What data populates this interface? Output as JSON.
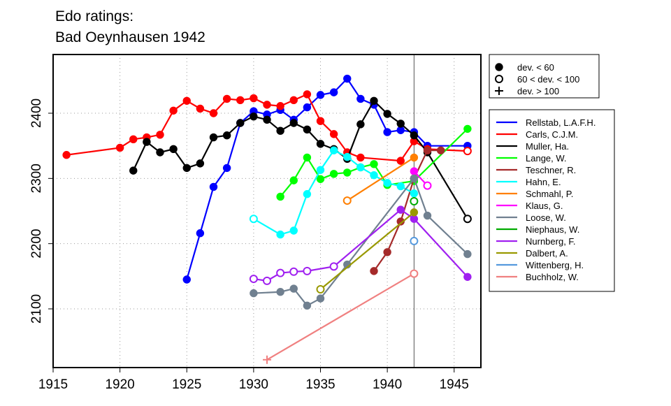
{
  "chart_data": {
    "type": "line",
    "title_line1": "Edo ratings:",
    "title_line2": "Bad Oeynhausen 1942",
    "xlabel": "",
    "ylabel": "",
    "xlim": [
      1915,
      1947
    ],
    "ylim": [
      2010,
      2490
    ],
    "xticks": [
      "1915",
      "1920",
      "1925",
      "1930",
      "1935",
      "1940",
      "1945"
    ],
    "yticks": [
      "2100",
      "2200",
      "2300",
      "2400"
    ],
    "grid": true,
    "event_year": 1942,
    "legend_markers": [
      "dev. < 60",
      "60 < dev. < 100",
      "dev. > 100"
    ],
    "series": [
      {
        "name": "Rellstab, L.A.F.H.",
        "color": "#0000ff",
        "points": [
          [
            1925,
            2145,
            "f"
          ],
          [
            1926,
            2216,
            "f"
          ],
          [
            1927,
            2287,
            "f"
          ],
          [
            1928,
            2316,
            "f"
          ],
          [
            1929,
            2385,
            "f"
          ],
          [
            1930,
            2403,
            "f"
          ],
          [
            1931,
            2398,
            "f"
          ],
          [
            1932,
            2405,
            "f"
          ],
          [
            1933,
            2390,
            "f"
          ],
          [
            1934,
            2409,
            "f"
          ],
          [
            1935,
            2428,
            "f"
          ],
          [
            1936,
            2432,
            "f"
          ],
          [
            1937,
            2453,
            "f"
          ],
          [
            1938,
            2422,
            "f"
          ],
          [
            1939,
            2413,
            "f"
          ],
          [
            1940,
            2371,
            "f"
          ],
          [
            1941,
            2374,
            "f"
          ],
          [
            1942,
            2371,
            "f"
          ],
          [
            1943,
            2350,
            "f"
          ],
          [
            1946,
            2350,
            "f"
          ]
        ]
      },
      {
        "name": "Carls, C.J.M.",
        "color": "#ff0000",
        "points": [
          [
            1916,
            2336,
            "f"
          ],
          [
            1920,
            2347,
            "f"
          ],
          [
            1921,
            2360,
            "f"
          ],
          [
            1922,
            2363,
            "f"
          ],
          [
            1923,
            2367,
            "f"
          ],
          [
            1924,
            2404,
            "f"
          ],
          [
            1925,
            2419,
            "f"
          ],
          [
            1926,
            2407,
            "f"
          ],
          [
            1927,
            2400,
            "f"
          ],
          [
            1928,
            2422,
            "f"
          ],
          [
            1929,
            2420,
            "f"
          ],
          [
            1930,
            2423,
            "f"
          ],
          [
            1931,
            2413,
            "f"
          ],
          [
            1932,
            2411,
            "f"
          ],
          [
            1933,
            2420,
            "f"
          ],
          [
            1934,
            2429,
            "f"
          ],
          [
            1935,
            2388,
            "f"
          ],
          [
            1936,
            2368,
            "f"
          ],
          [
            1937,
            2340,
            "f"
          ],
          [
            1938,
            2332,
            "f"
          ],
          [
            1941,
            2327,
            "f"
          ],
          [
            1942,
            2357,
            "f"
          ],
          [
            1943,
            2345,
            "f"
          ],
          [
            1946,
            2342,
            "o"
          ]
        ]
      },
      {
        "name": "Muller, Ha.",
        "color": "#000000",
        "points": [
          [
            1921,
            2312,
            "f"
          ],
          [
            1922,
            2356,
            "f"
          ],
          [
            1923,
            2340,
            "f"
          ],
          [
            1924,
            2345,
            "f"
          ],
          [
            1925,
            2316,
            "f"
          ],
          [
            1926,
            2323,
            "f"
          ],
          [
            1927,
            2363,
            "f"
          ],
          [
            1928,
            2366,
            "f"
          ],
          [
            1929,
            2385,
            "f"
          ],
          [
            1930,
            2395,
            "f"
          ],
          [
            1931,
            2390,
            "f"
          ],
          [
            1932,
            2373,
            "f"
          ],
          [
            1933,
            2385,
            "f"
          ],
          [
            1934,
            2375,
            "f"
          ],
          [
            1935,
            2353,
            "f"
          ],
          [
            1936,
            2345,
            "f"
          ],
          [
            1937,
            2330,
            "f"
          ],
          [
            1938,
            2383,
            "f"
          ],
          [
            1939,
            2419,
            "f"
          ],
          [
            1940,
            2399,
            "f"
          ],
          [
            1941,
            2384,
            "f"
          ],
          [
            1942,
            2366,
            "f"
          ],
          [
            1943,
            2340,
            "f"
          ],
          [
            1946,
            2238,
            "o"
          ]
        ]
      },
      {
        "name": "Lange, W.",
        "color": "#00ff00",
        "points": [
          [
            1932,
            2272,
            "f"
          ],
          [
            1933,
            2297,
            "f"
          ],
          [
            1934,
            2332,
            "f"
          ],
          [
            1935,
            2299,
            "f"
          ],
          [
            1936,
            2307,
            "f"
          ],
          [
            1937,
            2309,
            "f"
          ],
          [
            1938,
            2317,
            "f"
          ],
          [
            1939,
            2322,
            "f"
          ],
          [
            1940,
            2290,
            "f"
          ],
          [
            1942,
            2296,
            "f"
          ],
          [
            1946,
            2376,
            "f"
          ]
        ]
      },
      {
        "name": "Teschner, R.",
        "color": "#a52a2a",
        "points": [
          [
            1939,
            2158,
            "f"
          ],
          [
            1940,
            2187,
            "f"
          ],
          [
            1941,
            2234,
            "f"
          ],
          [
            1942,
            2300,
            "f"
          ],
          [
            1943,
            2343,
            "f"
          ],
          [
            1944,
            2343,
            "f"
          ]
        ]
      },
      {
        "name": "Hahn, E.",
        "color": "#00ffff",
        "points": [
          [
            1930,
            2238,
            "o"
          ],
          [
            1932,
            2214,
            "f"
          ],
          [
            1933,
            2220,
            "f"
          ],
          [
            1934,
            2276,
            "f"
          ],
          [
            1935,
            2313,
            "f"
          ],
          [
            1936,
            2343,
            "f"
          ],
          [
            1937,
            2333,
            "f"
          ],
          [
            1938,
            2317,
            "f"
          ],
          [
            1939,
            2305,
            "f"
          ],
          [
            1940,
            2293,
            "f"
          ],
          [
            1941,
            2288,
            "f"
          ],
          [
            1942,
            2277,
            "f"
          ]
        ]
      },
      {
        "name": "Schmahl, P.",
        "color": "#ff7f00",
        "points": [
          [
            1937,
            2266,
            "o"
          ],
          [
            1942,
            2332,
            "f"
          ]
        ]
      },
      {
        "name": "Klaus, G.",
        "color": "#ff00ff",
        "points": [
          [
            1942,
            2311,
            "f"
          ],
          [
            1943,
            2289,
            "o"
          ]
        ]
      },
      {
        "name": "Loose, W.",
        "color": "#708090",
        "points": [
          [
            1930,
            2124,
            "f"
          ],
          [
            1932,
            2126,
            "f"
          ],
          [
            1933,
            2131,
            "f"
          ],
          [
            1934,
            2105,
            "f"
          ],
          [
            1935,
            2116,
            "f"
          ],
          [
            1937,
            2168,
            "f"
          ],
          [
            1942,
            2300,
            "f"
          ],
          [
            1943,
            2243,
            "f"
          ],
          [
            1946,
            2184,
            "f"
          ]
        ]
      },
      {
        "name": "Niephaus, W.",
        "color": "#00aa00",
        "points": [
          [
            1942,
            2265,
            "o"
          ]
        ]
      },
      {
        "name": "Nurnberg, F.",
        "color": "#a020f0",
        "points": [
          [
            1930,
            2146,
            "o"
          ],
          [
            1931,
            2143,
            "o"
          ],
          [
            1932,
            2155,
            "o"
          ],
          [
            1933,
            2157,
            "o"
          ],
          [
            1934,
            2158,
            "o"
          ],
          [
            1936,
            2165,
            "o"
          ],
          [
            1941,
            2252,
            "f"
          ],
          [
            1942,
            2238,
            "f"
          ],
          [
            1946,
            2149,
            "f"
          ]
        ]
      },
      {
        "name": "Dalbert, A.",
        "color": "#999900",
        "points": [
          [
            1935,
            2130,
            "o"
          ],
          [
            1942,
            2248,
            "f"
          ]
        ]
      },
      {
        "name": "Wittenberg, H.",
        "color": "#5599dd",
        "points": [
          [
            1942,
            2204,
            "o"
          ]
        ]
      },
      {
        "name": "Buchholz, W.",
        "color": "#f08080",
        "points": [
          [
            1931,
            2022,
            "p"
          ],
          [
            1942,
            2154,
            "o"
          ]
        ]
      }
    ]
  }
}
